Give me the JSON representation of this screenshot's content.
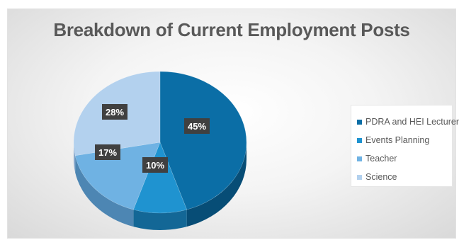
{
  "chart_data": {
    "type": "pie",
    "title": "Breakdown of Current Employment Posts",
    "categories": [
      "PDRA and HEI Lecturer",
      "Events Planning",
      "Teacher",
      "Science"
    ],
    "values": [
      45,
      10,
      17,
      28
    ],
    "labels": [
      "45%",
      "10%",
      "17%",
      "28%"
    ],
    "colors": [
      "#0b6ea6",
      "#1f93d0",
      "#6fb2e3",
      "#b3d1ee"
    ],
    "side_colors": [
      "#074d76",
      "#136796",
      "#4d86b3",
      "#86a8cc"
    ],
    "legend_position": "right",
    "style": "3d"
  }
}
